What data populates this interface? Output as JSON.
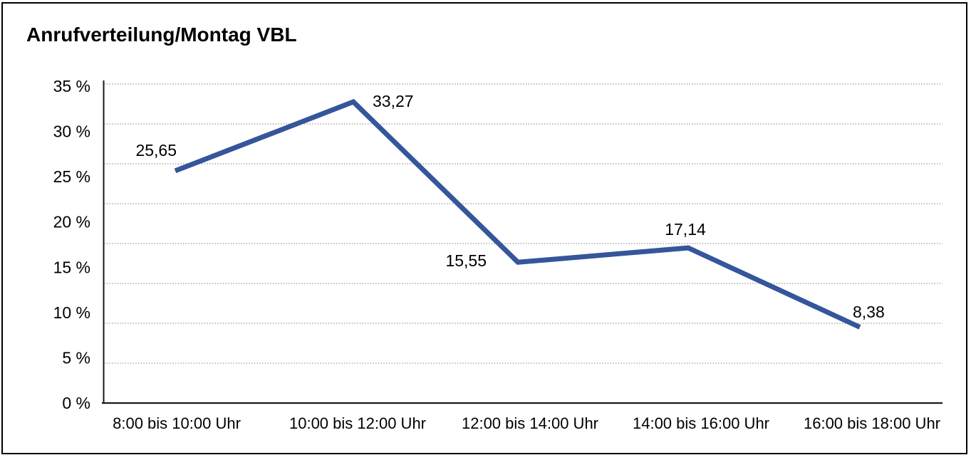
{
  "frame": {
    "border_color": "#000000",
    "background_color": "#ffffff"
  },
  "chart_data": {
    "type": "line",
    "title": "Anrufverteilung/Montag VBL",
    "categories": [
      "8:00 bis 10:00 Uhr",
      "10:00 bis 12:00 Uhr",
      "12:00 bis 14:00 Uhr",
      "14:00 bis 16:00 Uhr",
      "16:00 bis 18:00 Uhr"
    ],
    "values": [
      25.65,
      33.27,
      15.55,
      17.14,
      8.38
    ],
    "point_labels": [
      "25,65",
      "33,27",
      "15,55",
      "17,14",
      "8,38"
    ],
    "unit": "%",
    "xlabel": "",
    "ylabel": "",
    "ylim": [
      0,
      35
    ],
    "y_tick_step": 5,
    "y_ticks": [
      {
        "value": 0,
        "label": "0 %"
      },
      {
        "value": 5,
        "label": "5 %"
      },
      {
        "value": 10,
        "label": "10 %"
      },
      {
        "value": 15,
        "label": "15 %"
      },
      {
        "value": 20,
        "label": "20 %"
      },
      {
        "value": 25,
        "label": "25 %"
      },
      {
        "value": 30,
        "label": "30 %"
      },
      {
        "value": 35,
        "label": "35 %"
      }
    ],
    "grid": "horizontal-dotted",
    "gridline_rows": 8,
    "legend": "none",
    "line_color": "#35569B",
    "axis_color": "#1a1a1a",
    "grid_color": "#999999",
    "text_color": "#000000"
  }
}
